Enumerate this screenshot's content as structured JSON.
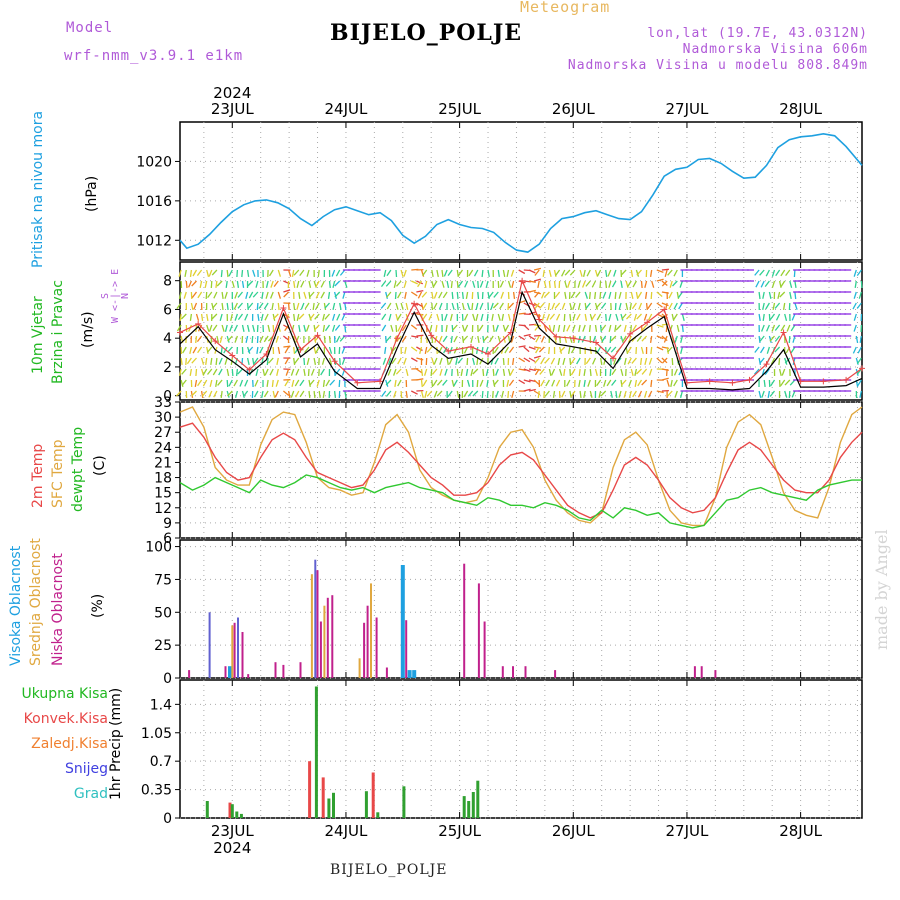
{
  "header": {
    "model_label": "Model",
    "model_name": "wrf-nmm_v3.9.1  e1km",
    "station": "BIJELO_POLJE",
    "meteogram": "Meteogram",
    "lonlat": "lon,lat (19.7E, 43.0312N)",
    "elevation": "Nadmorska Visina 606m",
    "model_elevation": "Nadmorska Visina u modelu 808.849m",
    "watermark": "made by Angel",
    "bottom_station": "BIJELO_POLJE"
  },
  "colors": {
    "pressure": "#1ea0e0",
    "temp2m": "#e84848",
    "sfc_temp": "#e0a840",
    "dewpt": "#30c830",
    "wind_speed": "#000000",
    "gust": "#e84848",
    "cloud_high": "#1ea0e0",
    "cloud_mid": "#e0a840",
    "cloud_low": "#c0208c",
    "cloud_total": "#6060d0",
    "precip_total": "#30a030",
    "precip_conv": "#e84848",
    "label_green": "#22b822",
    "label_red": "#e84848",
    "label_orange": "#f08030",
    "label_blue": "#4040e0",
    "label_cyan": "#30c0c0"
  },
  "chart_data": [
    {
      "type": "line",
      "panel": "pressure",
      "ylabel": "Pritisak na nivou mora",
      "unit": "(hPa)",
      "ylim": [
        1010,
        1024
      ],
      "yticks": [
        1012,
        1016,
        1020
      ],
      "x_start_day": 22.54,
      "x_end_day": 28.54,
      "day_ticks": [
        23,
        24,
        25,
        26,
        27,
        28
      ],
      "day_labels": [
        "23JUL",
        "24JUL",
        "25JUL",
        "26JUL",
        "27JUL",
        "28JUL"
      ],
      "year_label": "2024",
      "x": [
        22.54,
        22.6,
        22.7,
        22.8,
        22.9,
        23.0,
        23.1,
        23.2,
        23.3,
        23.4,
        23.5,
        23.6,
        23.7,
        23.8,
        23.9,
        24.0,
        24.1,
        24.2,
        24.3,
        24.4,
        24.5,
        24.6,
        24.7,
        24.8,
        24.9,
        25.0,
        25.1,
        25.2,
        25.3,
        25.4,
        25.5,
        25.6,
        25.7,
        25.8,
        25.9,
        26.0,
        26.1,
        26.2,
        26.3,
        26.4,
        26.5,
        26.6,
        26.7,
        26.8,
        26.9,
        27.0,
        27.1,
        27.2,
        27.3,
        27.4,
        27.5,
        27.6,
        27.7,
        27.8,
        27.9,
        28.0,
        28.1,
        28.2,
        28.3,
        28.4,
        28.54
      ],
      "series": [
        {
          "name": "Pritisak na nivou mora",
          "values": [
            1012.0,
            1011.2,
            1011.6,
            1012.6,
            1013.8,
            1014.9,
            1015.6,
            1016.0,
            1016.1,
            1015.8,
            1015.2,
            1014.2,
            1013.5,
            1014.4,
            1015.1,
            1015.4,
            1015.0,
            1014.6,
            1014.8,
            1014.0,
            1012.5,
            1011.7,
            1012.4,
            1013.6,
            1014.1,
            1013.6,
            1013.3,
            1013.2,
            1012.8,
            1011.8,
            1011.0,
            1010.8,
            1011.6,
            1013.2,
            1014.2,
            1014.4,
            1014.8,
            1015.0,
            1014.6,
            1014.2,
            1014.1,
            1014.9,
            1016.6,
            1018.5,
            1019.2,
            1019.4,
            1020.2,
            1020.3,
            1019.8,
            1019.0,
            1018.3,
            1018.4,
            1019.6,
            1021.4,
            1022.2,
            1022.5,
            1022.6,
            1022.8,
            1022.6,
            1021.5,
            1019.6
          ]
        }
      ]
    },
    {
      "type": "line",
      "panel": "wind",
      "ylabel_1": "10m Vjetar",
      "ylabel_2": "Brzina i Pravac",
      "unit": "(m/s)",
      "compass": {
        "n": "N",
        "s": "S",
        "e": "E",
        "w": "W",
        "row1": "N",
        "row2": "W <-|-> E",
        "row3": "S"
      },
      "ylim": [
        -0.3,
        9.3
      ],
      "yticks": [
        0,
        2,
        4,
        6,
        8
      ],
      "x": [
        22.54,
        22.7,
        22.85,
        23.0,
        23.15,
        23.3,
        23.45,
        23.6,
        23.75,
        23.9,
        24.1,
        24.3,
        24.45,
        24.6,
        24.75,
        24.9,
        25.1,
        25.25,
        25.45,
        25.55,
        25.7,
        25.85,
        26.0,
        26.2,
        26.35,
        26.5,
        26.65,
        26.8,
        27.0,
        27.2,
        27.4,
        27.55,
        27.7,
        27.85,
        28.0,
        28.2,
        28.4,
        28.54
      ],
      "series": [
        {
          "name": "Brzina",
          "values": [
            3.6,
            4.8,
            3.2,
            2.4,
            1.5,
            2.5,
            5.7,
            2.7,
            3.6,
            1.7,
            0.5,
            0.5,
            3.3,
            5.8,
            3.5,
            2.6,
            2.9,
            2.2,
            3.8,
            7.2,
            4.7,
            3.6,
            3.4,
            3.1,
            1.9,
            3.8,
            4.7,
            5.5,
            0.5,
            0.5,
            0.4,
            0.5,
            1.7,
            3.2,
            0.6,
            0.6,
            0.7,
            1.2
          ]
        },
        {
          "name": "Udar",
          "values": [
            4.4,
            5.0,
            3.8,
            2.8,
            1.8,
            2.9,
            6.1,
            3.2,
            4.2,
            2.4,
            0.9,
            1.0,
            4.0,
            6.4,
            4.2,
            3.1,
            3.4,
            2.9,
            4.4,
            8.0,
            5.3,
            4.1,
            4.0,
            3.7,
            2.6,
            4.3,
            5.1,
            6.0,
            0.9,
            1.0,
            0.9,
            1.1,
            2.2,
            4.4,
            1.0,
            1.0,
            1.1,
            1.9
          ]
        }
      ]
    },
    {
      "type": "line",
      "panel": "temperature",
      "ylabel_1": "2m Temp",
      "ylabel_2": "SFC Temp",
      "ylabel_3": "dewpt Temp",
      "unit": "(C)",
      "ylim": [
        6,
        33
      ],
      "yticks": [
        6,
        9,
        12,
        15,
        18,
        21,
        24,
        27,
        30,
        33
      ],
      "x": [
        22.54,
        22.65,
        22.75,
        22.85,
        22.95,
        23.05,
        23.15,
        23.25,
        23.35,
        23.45,
        23.55,
        23.65,
        23.75,
        23.85,
        23.95,
        24.05,
        24.15,
        24.25,
        24.35,
        24.45,
        24.55,
        24.65,
        24.75,
        24.85,
        24.95,
        25.05,
        25.15,
        25.25,
        25.35,
        25.45,
        25.55,
        25.65,
        25.75,
        25.85,
        25.95,
        26.05,
        26.15,
        26.25,
        26.35,
        26.45,
        26.55,
        26.65,
        26.75,
        26.85,
        26.95,
        27.05,
        27.15,
        27.25,
        27.35,
        27.45,
        27.55,
        27.65,
        27.75,
        27.85,
        27.95,
        28.05,
        28.15,
        28.25,
        28.35,
        28.45,
        28.54
      ],
      "series": [
        {
          "name": "2m Temp",
          "values": [
            28.0,
            28.8,
            26.0,
            22.0,
            19.0,
            17.5,
            18.0,
            22.0,
            25.5,
            26.8,
            25.5,
            22.0,
            19.0,
            18.0,
            17.0,
            16.0,
            16.5,
            19.5,
            23.5,
            25.0,
            23.0,
            20.5,
            18.0,
            16.5,
            14.5,
            14.5,
            15.0,
            17.0,
            20.5,
            22.5,
            23.0,
            21.5,
            18.5,
            15.5,
            12.5,
            11.0,
            10.0,
            11.0,
            15.5,
            20.5,
            22.0,
            20.5,
            17.5,
            14.0,
            12.0,
            11.0,
            11.5,
            14.0,
            19.0,
            23.5,
            25.0,
            23.5,
            20.5,
            17.5,
            15.5,
            15.0,
            15.0,
            17.5,
            22.0,
            25.0,
            27.0
          ]
        },
        {
          "name": "SFC Temp",
          "values": [
            31.0,
            32.0,
            28.0,
            20.0,
            17.5,
            16.5,
            16.5,
            24.5,
            29.5,
            31.0,
            30.5,
            25.0,
            18.0,
            16.0,
            15.5,
            14.5,
            15.0,
            21.0,
            28.5,
            30.5,
            27.0,
            19.5,
            16.0,
            14.5,
            13.5,
            13.0,
            13.5,
            18.0,
            24.0,
            27.0,
            27.5,
            24.0,
            17.5,
            13.5,
            11.0,
            9.5,
            9.0,
            11.0,
            20.0,
            25.5,
            27.0,
            24.5,
            17.5,
            11.5,
            9.0,
            8.5,
            8.5,
            14.0,
            24.0,
            29.0,
            30.5,
            28.5,
            22.0,
            15.0,
            11.5,
            10.5,
            10.0,
            16.0,
            25.0,
            30.5,
            32.0
          ]
        },
        {
          "name": "dewpt Temp",
          "values": [
            17.0,
            15.5,
            16.5,
            18.0,
            17.0,
            16.0,
            15.0,
            17.5,
            16.5,
            16.0,
            17.0,
            18.5,
            18.0,
            17.0,
            16.0,
            15.5,
            16.0,
            15.0,
            16.0,
            16.5,
            17.0,
            16.0,
            15.5,
            15.0,
            13.5,
            13.0,
            12.5,
            14.0,
            13.5,
            12.5,
            12.5,
            12.0,
            13.0,
            12.5,
            11.5,
            10.0,
            9.5,
            11.5,
            10.0,
            12.0,
            11.5,
            10.5,
            11.0,
            9.0,
            8.5,
            8.0,
            8.5,
            11.0,
            13.5,
            14.0,
            15.5,
            16.0,
            15.0,
            14.5,
            14.0,
            13.5,
            15.5,
            16.5,
            17.0,
            17.5,
            17.5
          ]
        }
      ]
    },
    {
      "type": "bar",
      "panel": "clouds",
      "ylabel_1": "Visoka Oblacnost",
      "ylabel_2": "Srednja Oblacnost",
      "ylabel_3": "Niska Oblacnost",
      "unit": "(%)",
      "ylim": [
        0,
        105
      ],
      "yticks": [
        0,
        25,
        50,
        75,
        100
      ],
      "bars": [
        {
          "x": 22.62,
          "series": "cloud_low",
          "value": 6
        },
        {
          "x": 22.8,
          "series": "cloud_total",
          "value": 50
        },
        {
          "x": 22.94,
          "series": "cloud_low",
          "value": 9
        },
        {
          "x": 22.98,
          "series": "cloud_high",
          "value": 9
        },
        {
          "x": 23.0,
          "series": "cloud_mid",
          "value": 40
        },
        {
          "x": 23.02,
          "series": "cloud_low",
          "value": 42
        },
        {
          "x": 23.05,
          "series": "cloud_total",
          "value": 46
        },
        {
          "x": 23.09,
          "series": "cloud_low",
          "value": 35
        },
        {
          "x": 23.14,
          "series": "cloud_low",
          "value": 3
        },
        {
          "x": 23.38,
          "series": "cloud_low",
          "value": 12
        },
        {
          "x": 23.45,
          "series": "cloud_low",
          "value": 10
        },
        {
          "x": 23.6,
          "series": "cloud_low",
          "value": 12
        },
        {
          "x": 23.7,
          "series": "cloud_mid",
          "value": 79
        },
        {
          "x": 23.73,
          "series": "cloud_total",
          "value": 90
        },
        {
          "x": 23.75,
          "series": "cloud_low",
          "value": 82
        },
        {
          "x": 23.78,
          "series": "cloud_low",
          "value": 43
        },
        {
          "x": 23.81,
          "series": "cloud_mid",
          "value": 55
        },
        {
          "x": 23.84,
          "series": "cloud_low",
          "value": 61
        },
        {
          "x": 23.88,
          "series": "cloud_low",
          "value": 63
        },
        {
          "x": 24.12,
          "series": "cloud_mid",
          "value": 15
        },
        {
          "x": 24.16,
          "series": "cloud_low",
          "value": 42
        },
        {
          "x": 24.19,
          "series": "cloud_low",
          "value": 55
        },
        {
          "x": 24.22,
          "series": "cloud_mid",
          "value": 72
        },
        {
          "x": 24.27,
          "series": "cloud_low",
          "value": 46
        },
        {
          "x": 24.36,
          "series": "cloud_low",
          "value": 8
        },
        {
          "x": 24.5,
          "series": "cloud_high",
          "value": 86
        },
        {
          "x": 24.53,
          "series": "cloud_low",
          "value": 44
        },
        {
          "x": 24.56,
          "series": "cloud_high",
          "value": 6
        },
        {
          "x": 24.6,
          "series": "cloud_high",
          "value": 6
        },
        {
          "x": 25.04,
          "series": "cloud_low",
          "value": 87
        },
        {
          "x": 25.17,
          "series": "cloud_low",
          "value": 72
        },
        {
          "x": 25.22,
          "series": "cloud_low",
          "value": 43
        },
        {
          "x": 25.38,
          "series": "cloud_low",
          "value": 9
        },
        {
          "x": 25.47,
          "series": "cloud_low",
          "value": 9
        },
        {
          "x": 25.58,
          "series": "cloud_low",
          "value": 9
        },
        {
          "x": 25.84,
          "series": "cloud_low",
          "value": 6
        },
        {
          "x": 27.07,
          "series": "cloud_low",
          "value": 9
        },
        {
          "x": 27.13,
          "series": "cloud_low",
          "value": 9
        },
        {
          "x": 27.25,
          "series": "cloud_low",
          "value": 6
        }
      ]
    },
    {
      "type": "bar",
      "panel": "precip",
      "ylabel_1": "1hr Precip",
      "unit": "(mm)",
      "legend": [
        "Ukupna Kisa",
        "Konvek.Kisa",
        "Zaledj.Kisa",
        "Snijeg",
        "Grad"
      ],
      "ylim": [
        0,
        1.7
      ],
      "yticks": [
        0,
        0.35,
        0.7,
        1.05,
        1.4
      ],
      "ytick_labels": [
        "0",
        "0.35",
        "0.7",
        "1.05",
        "1.4"
      ],
      "bars": [
        {
          "x": 22.78,
          "series": "precip_total",
          "value": 0.21
        },
        {
          "x": 22.98,
          "series": "precip_conv",
          "value": 0.19
        },
        {
          "x": 23.0,
          "series": "precip_total",
          "value": 0.17
        },
        {
          "x": 23.04,
          "series": "precip_total",
          "value": 0.08
        },
        {
          "x": 23.08,
          "series": "precip_total",
          "value": 0.05
        },
        {
          "x": 23.68,
          "series": "precip_conv",
          "value": 0.7
        },
        {
          "x": 23.74,
          "series": "precip_total",
          "value": 1.62
        },
        {
          "x": 23.8,
          "series": "precip_conv",
          "value": 0.5
        },
        {
          "x": 23.85,
          "series": "precip_total",
          "value": 0.24
        },
        {
          "x": 23.89,
          "series": "precip_total",
          "value": 0.31
        },
        {
          "x": 24.18,
          "series": "precip_total",
          "value": 0.33
        },
        {
          "x": 24.24,
          "series": "precip_conv",
          "value": 0.56
        },
        {
          "x": 24.28,
          "series": "precip_total",
          "value": 0.07
        },
        {
          "x": 24.51,
          "series": "precip_total",
          "value": 0.39
        },
        {
          "x": 25.04,
          "series": "precip_total",
          "value": 0.27
        },
        {
          "x": 25.08,
          "series": "precip_total",
          "value": 0.21
        },
        {
          "x": 25.12,
          "series": "precip_total",
          "value": 0.32
        },
        {
          "x": 25.16,
          "series": "precip_total",
          "value": 0.46
        }
      ]
    }
  ]
}
